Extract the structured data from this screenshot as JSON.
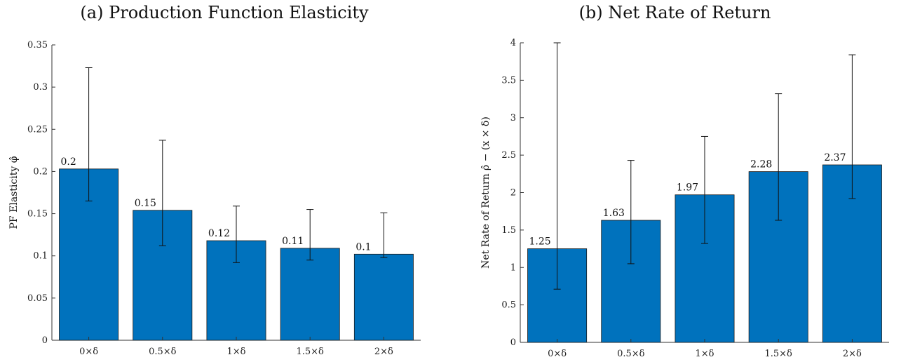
{
  "chart_data": [
    {
      "type": "bar",
      "title": "(a) Production Function Elasticity",
      "ylabel": "PF Elasticity φ̂",
      "xlabel": "",
      "categories": [
        "0×δ",
        "0.5×δ",
        "1×δ",
        "1.5×δ",
        "2×δ"
      ],
      "values": [
        0.203,
        0.154,
        0.118,
        0.109,
        0.102
      ],
      "data_labels": [
        "0.2",
        "0.15",
        "0.12",
        "0.11",
        "0.1"
      ],
      "error_low": [
        0.165,
        0.112,
        0.092,
        0.095,
        0.098
      ],
      "error_high": [
        0.323,
        0.237,
        0.159,
        0.155,
        0.151
      ],
      "ylim": [
        0,
        0.35
      ],
      "yticks": [
        0,
        0.05,
        0.1,
        0.15,
        0.2,
        0.25,
        0.3,
        0.35
      ],
      "ytick_labels": [
        "0",
        "0.05",
        "0.1",
        "0.15",
        "0.2",
        "0.25",
        "0.3",
        "0.35"
      ],
      "bar_color": "#0072BD",
      "grid": false
    },
    {
      "type": "bar",
      "title": "(b) Net Rate of Return",
      "ylabel": "Net Rate of Return ρ̂ − (x × δ)",
      "xlabel": "",
      "categories": [
        "0×δ",
        "0.5×δ",
        "1×δ",
        "1.5×δ",
        "2×δ"
      ],
      "values": [
        1.25,
        1.63,
        1.97,
        2.28,
        2.37
      ],
      "data_labels": [
        "1.25",
        "1.63",
        "1.97",
        "2.28",
        "2.37"
      ],
      "error_low": [
        0.71,
        1.05,
        1.32,
        1.63,
        1.92
      ],
      "error_high": [
        4.0,
        2.43,
        2.75,
        3.32,
        3.84
      ],
      "ylim": [
        0,
        4
      ],
      "yticks": [
        0,
        0.5,
        1,
        1.5,
        2,
        2.5,
        3,
        3.5,
        4
      ],
      "ytick_labels": [
        "0",
        "0.5",
        "1",
        "1.5",
        "2",
        "2.5",
        "3",
        "3.5",
        "4"
      ],
      "bar_color": "#0072BD",
      "grid": false
    }
  ]
}
